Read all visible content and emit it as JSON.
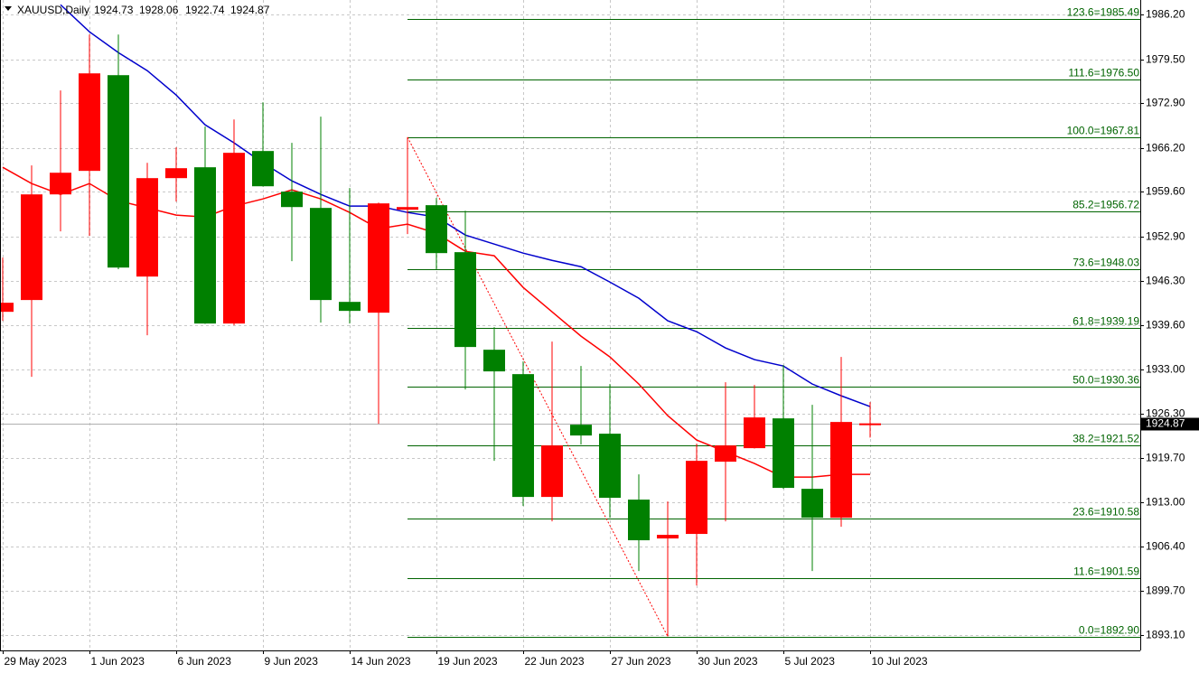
{
  "chart_data": {
    "type": "candlestick",
    "header": {
      "symbol": "XAUUSD,Daily",
      "ohlc": [
        1924.73,
        1928.06,
        1922.74,
        1924.87
      ]
    },
    "categories": [
      "29 May 2023",
      null,
      null,
      "1 Jun 2023",
      null,
      null,
      "6 Jun 2023",
      null,
      null,
      "9 Jun 2023",
      null,
      null,
      "14 Jun 2023",
      null,
      null,
      "19 Jun 2023",
      null,
      null,
      "22 Jun 2023",
      null,
      null,
      "27 Jun 2023",
      null,
      null,
      "30 Jun 2023",
      null,
      null,
      "5 Jul 2023",
      null,
      null,
      "10 Jul 2023"
    ],
    "open": [
      1941.61,
      1943.38,
      1959.23,
      1962.76,
      1977.12,
      1946.9,
      1961.67,
      1963.3,
      1939.85,
      1965.74,
      1959.64,
      1957.2,
      1943.1,
      1941.48,
      1956.93,
      1957.61,
      1950.56,
      1935.92,
      1932.26,
      1913.83,
      1924.67,
      1923.32,
      1913.43,
      1907.6,
      1908.28,
      1919.12,
      1921.15,
      1925.62,
      1915.05,
      1910.71,
      1924.73
    ],
    "high": [
      1949.75,
      1963.57,
      1974.82,
      1983.22,
      1983.22,
      1963.97,
      1966.28,
      1969.4,
      1970.48,
      1973.05,
      1966.96,
      1970.89,
      1960.18,
      1958.01,
      1967.81,
      1958.69,
      1956.79,
      1939.31,
      1934.16,
      1937.14,
      1933.48,
      1930.77,
      1917.22,
      1913.15,
      1921.83,
      1931.04,
      1930.64,
      1933.62,
      1927.66,
      1934.84,
      1928.06
    ],
    "low": [
      1940.26,
      1931.86,
      1953.68,
      1953.0,
      1948.0,
      1938.09,
      1958.15,
      1939.8,
      1939.58,
      1960.4,
      1949.2,
      1939.99,
      1939.85,
      1924.81,
      1953.27,
      1947.98,
      1929.96,
      1919.25,
      1912.48,
      1910.17,
      1921.69,
      1910.71,
      1902.72,
      1892.9,
      1900.55,
      1910.17,
      1921.1,
      1915.05,
      1902.72,
      1909.36,
      1922.74
    ],
    "close": [
      1942.97,
      1959.23,
      1962.48,
      1977.39,
      1948.25,
      1961.67,
      1963.16,
      1939.85,
      1965.47,
      1960.45,
      1957.33,
      1943.38,
      1941.75,
      1957.88,
      1957.33,
      1950.42,
      1936.33,
      1932.67,
      1913.83,
      1921.56,
      1923.05,
      1913.7,
      1907.33,
      1908.14,
      1919.25,
      1921.56,
      1925.76,
      1915.19,
      1910.71,
      1925.08,
      1924.87
    ],
    "up_color": "#ff0000",
    "down_color": "#008000",
    "moving_averages": [
      {
        "color": "#ff0000",
        "values": [
          1963.3,
          1960.86,
          1959.23,
          1960.86,
          1958.28,
          1957.2,
          1956.12,
          1955.84,
          1957.47,
          1958.55,
          1959.91,
          1958.55,
          1956.52,
          1954.08,
          1954.76,
          1953.4,
          1950.69,
          1950.02,
          1945.27,
          1941.61,
          1937.96,
          1934.84,
          1930.77,
          1926.03,
          1922.37,
          1920.61,
          1918.85,
          1916.81,
          1916.81,
          1917.22,
          1917.22
        ]
      },
      {
        "color": "#0000cc",
        "values": [
          null,
          null,
          1987.69,
          1983.63,
          1980.51,
          1977.8,
          1974.14,
          1969.67,
          1966.96,
          1963.97,
          1961.26,
          1959.23,
          1957.47,
          1957.47,
          1956.52,
          1955.84,
          1953.13,
          1951.77,
          1950.42,
          1949.33,
          1948.38,
          1946.07,
          1943.65,
          1940.26,
          1938.63,
          1936.19,
          1934.44,
          1933.48,
          1930.77,
          1929.01,
          1927.39
        ]
      }
    ],
    "fibonacci": {
      "color": "#006400",
      "trend_color": "#ff0000",
      "levels": [
        {
          "label": "123.6=1985.49",
          "value": 1985.49
        },
        {
          "label": "111.6=1976.50",
          "value": 1976.5
        },
        {
          "label": "100.0=1967.81",
          "value": 1967.81
        },
        {
          "label": "85.2=1956.72",
          "value": 1956.72
        },
        {
          "label": "73.6=1948.03",
          "value": 1948.03
        },
        {
          "label": "61.8=1939.19",
          "value": 1939.19
        },
        {
          "label": "50.0=1930.36",
          "value": 1930.36
        },
        {
          "label": "38.2=1921.52",
          "value": 1921.52
        },
        {
          "label": "23.6=1910.58",
          "value": 1910.58
        },
        {
          "label": "11.6=1901.59",
          "value": 1901.59
        },
        {
          "label": "0.0=1892.90",
          "value": 1892.9
        }
      ]
    },
    "current_price": 1924.87,
    "ylim": [
      1890.8,
      1988.4
    ],
    "yticks": [
      {
        "value": 1986.2,
        "label": "1986.20"
      },
      {
        "value": 1979.5,
        "label": "1979.50"
      },
      {
        "value": 1972.9,
        "label": "1972.90"
      },
      {
        "value": 1966.2,
        "label": "1966.20"
      },
      {
        "value": 1959.6,
        "label": "1959.60"
      },
      {
        "value": 1952.9,
        "label": "1952.90"
      },
      {
        "value": 1946.3,
        "label": "1946.30"
      },
      {
        "value": 1939.6,
        "label": "1939.60"
      },
      {
        "value": 1933.0,
        "label": "1933.00"
      },
      {
        "value": 1926.3,
        "label": "1926.30"
      },
      {
        "value": 1919.7,
        "label": "1919.70"
      },
      {
        "value": 1913.0,
        "label": "1913.00"
      },
      {
        "value": 1906.4,
        "label": "1906.40"
      },
      {
        "value": 1899.7,
        "label": "1899.70"
      },
      {
        "value": 1893.1,
        "label": "1893.10"
      }
    ],
    "grid": true
  }
}
